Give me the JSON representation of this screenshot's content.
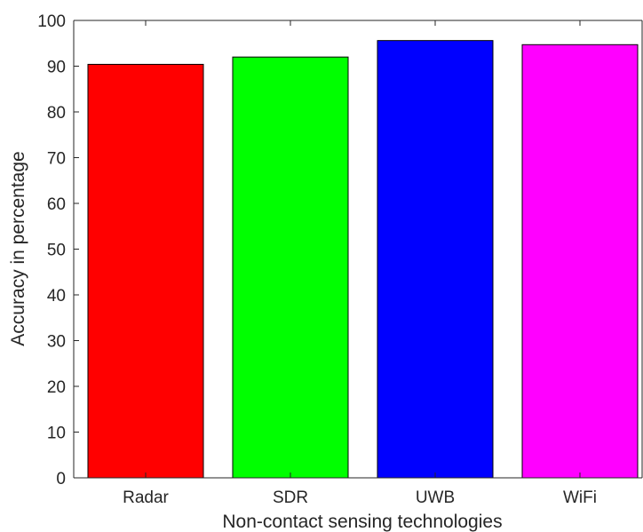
{
  "chart_data": {
    "type": "bar",
    "categories": [
      "Radar",
      "SDR",
      "UWB",
      "WiFi"
    ],
    "values": [
      90.4,
      92.0,
      95.6,
      94.7
    ],
    "colors": [
      "#ff0000",
      "#00ff00",
      "#0000ff",
      "#ff00ff"
    ],
    "title": "",
    "xlabel": "Non-contact sensing technologies",
    "ylabel": "Accuracy in percentage",
    "ylim": [
      0,
      100
    ],
    "yticks": [
      0,
      10,
      20,
      30,
      40,
      50,
      60,
      70,
      80,
      90,
      100
    ],
    "grid": false,
    "legend": "none"
  }
}
